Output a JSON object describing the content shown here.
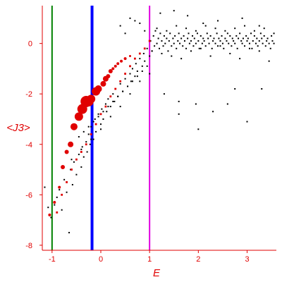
{
  "chart_data": {
    "type": "scatter",
    "title": "",
    "xlabel": "E",
    "ylabel": "<J3>",
    "xlim": [
      -1.2,
      3.6
    ],
    "ylim": [
      -8.2,
      1.5
    ],
    "grid": false,
    "x_ticks": [
      -1,
      0,
      1,
      2,
      3
    ],
    "y_ticks": [
      0,
      -2,
      -4,
      -6,
      -8
    ],
    "x_tick_labels": [
      "-1",
      "0",
      "1",
      "2",
      "3"
    ],
    "y_tick_labels": [
      "0",
      "-2",
      "-4",
      "-6",
      "-8"
    ],
    "vertical_lines": [
      {
        "x": -1.0,
        "color": "#008000"
      },
      {
        "x": -0.18,
        "color": "#0000ff"
      },
      {
        "x": 1.0,
        "color": "#e000e0"
      }
    ],
    "series": [
      {
        "color": "#000000",
        "marker": "dot",
        "x": [
          -1.15,
          -1.08,
          -1.02,
          -0.95,
          -0.9,
          -0.85,
          -0.8,
          -0.75,
          -0.7,
          -0.65,
          -0.62,
          -0.58,
          -0.55,
          -0.5,
          -0.45,
          -0.4,
          -0.38,
          -0.35,
          -0.3,
          -0.28,
          -0.25,
          -0.22,
          -0.2,
          -0.15,
          -0.12,
          -0.1,
          -0.05,
          0.0,
          0.02,
          0.05,
          0.1,
          0.12,
          0.15,
          0.2,
          0.25,
          0.28,
          0.3,
          0.35,
          0.4,
          0.45,
          0.5,
          0.55,
          0.6,
          0.62,
          0.65,
          0.7,
          0.72,
          0.75,
          0.8,
          0.85,
          0.88,
          0.9,
          0.95,
          1.0,
          1.02,
          1.05,
          1.08,
          1.1,
          1.12,
          1.15,
          1.18,
          1.2,
          1.22,
          1.25,
          1.28,
          1.3,
          1.32,
          1.35,
          1.38,
          1.4,
          1.42,
          1.45,
          1.48,
          1.5,
          1.52,
          1.55,
          1.58,
          1.6,
          1.62,
          1.65,
          1.68,
          1.7,
          1.72,
          1.75,
          1.78,
          1.8,
          1.82,
          1.85,
          1.88,
          1.9,
          1.92,
          1.95,
          1.98,
          2.0,
          2.02,
          2.05,
          2.08,
          2.1,
          2.12,
          2.15,
          2.18,
          2.2,
          2.22,
          2.25,
          2.28,
          2.3,
          2.32,
          2.35,
          2.38,
          2.4,
          2.42,
          2.45,
          2.48,
          2.5,
          2.52,
          2.55,
          2.58,
          2.6,
          2.62,
          2.65,
          2.68,
          2.7,
          2.72,
          2.75,
          2.78,
          2.8,
          2.82,
          2.85,
          2.88,
          2.9,
          2.92,
          2.95,
          2.98,
          3.0,
          3.02,
          3.05,
          3.08,
          3.1,
          3.12,
          3.15,
          3.18,
          3.2,
          3.22,
          3.25,
          3.28,
          3.3,
          3.32,
          3.35,
          3.38,
          3.4,
          3.42,
          3.45,
          3.48,
          3.5,
          3.52,
          3.55,
          1.05,
          1.25,
          1.45,
          1.65,
          1.85,
          2.05,
          2.25,
          2.45,
          2.65,
          2.85,
          3.05,
          3.25,
          3.45,
          1.15,
          1.35,
          1.55,
          1.75,
          1.95,
          2.15,
          2.35,
          2.55,
          2.75,
          2.95,
          3.15,
          3.35,
          3.55,
          0.95,
          0.85,
          0.75,
          0.65,
          0.55,
          0.45,
          0.35,
          0.25,
          0.15,
          0.05,
          -0.05,
          -0.15,
          -0.25,
          -0.35,
          -0.45,
          0.9,
          0.8,
          0.7,
          0.6,
          0.5,
          0.4,
          1.22,
          1.5,
          1.78,
          2.1,
          2.4,
          2.9,
          3.25,
          1.95,
          1.6,
          2.75,
          -0.6,
          -0.4,
          -0.2,
          0.0,
          0.2,
          0.4,
          0.6,
          0.8,
          1.0,
          1.3,
          1.6,
          2.0,
          2.3,
          2.6,
          3.0,
          3.3
        ],
        "y": [
          -5.7,
          -6.5,
          -6.9,
          -6.4,
          -6.1,
          -5.8,
          -6.6,
          -5.4,
          -5.9,
          -7.5,
          -5.0,
          -5.6,
          -4.7,
          -5.2,
          -4.4,
          -4.9,
          -4.1,
          -4.5,
          -3.9,
          -4.3,
          -3.6,
          -4.0,
          -3.3,
          -3.8,
          -3.0,
          -3.5,
          -2.8,
          -3.2,
          -2.6,
          -3.0,
          -2.4,
          -2.7,
          -2.2,
          -2.5,
          -2.0,
          -2.3,
          -1.8,
          -2.1,
          -1.6,
          -1.9,
          -1.4,
          -1.7,
          -1.2,
          -1.5,
          -1.0,
          -1.3,
          -0.8,
          -1.1,
          -0.6,
          -0.9,
          -0.4,
          -0.7,
          -0.2,
          -0.5,
          0.1,
          -0.3,
          0.3,
          -0.1,
          0.5,
          0.0,
          0.2,
          -0.2,
          0.4,
          0.1,
          -0.1,
          0.3,
          0.0,
          0.2,
          -0.3,
          0.1,
          0.4,
          -0.1,
          0.2,
          0.0,
          0.3,
          -0.2,
          0.1,
          0.4,
          0.0,
          0.2,
          -0.1,
          0.3,
          0.1,
          -0.2,
          0.2,
          0.4,
          0.0,
          0.1,
          0.3,
          -0.1,
          0.2,
          0.0,
          0.4,
          0.1,
          -0.2,
          0.3,
          0.0,
          0.2,
          0.1,
          -0.1,
          0.4,
          0.2,
          0.0,
          0.3,
          -0.2,
          0.1,
          0.2,
          0.0,
          0.4,
          -0.1,
          0.2,
          0.1,
          0.3,
          0.0,
          -0.2,
          0.2,
          0.1,
          0.4,
          0.0,
          0.3,
          -0.1,
          0.2,
          0.1,
          0.0,
          0.3,
          -0.2,
          0.2,
          0.4,
          0.1,
          0.0,
          0.2,
          -0.1,
          0.3,
          0.1,
          0.2,
          0.0,
          0.4,
          -0.2,
          0.1,
          0.3,
          0.0,
          0.2,
          -0.1,
          0.1,
          0.4,
          0.2,
          0.0,
          0.3,
          -0.1,
          0.1,
          0.2,
          0.0,
          -0.2,
          0.3,
          0.1,
          0.0,
          -0.3,
          -0.4,
          -0.5,
          -0.6,
          -0.3,
          -0.2,
          -0.5,
          -0.1,
          -0.4,
          -0.6,
          -0.2,
          -0.3,
          -0.7,
          0.6,
          0.5,
          0.7,
          0.6,
          0.5,
          0.7,
          0.6,
          0.5,
          0.6,
          0.7,
          0.5,
          0.6,
          0.4,
          -0.9,
          -1.1,
          -1.3,
          -1.5,
          -1.7,
          -1.9,
          -2.1,
          -2.3,
          -2.5,
          -2.7,
          -2.9,
          -3.1,
          -3.3,
          -3.5,
          -3.7,
          0.5,
          0.8,
          0.9,
          1.0,
          0.4,
          0.7,
          1.2,
          1.3,
          1.1,
          0.8,
          0.9,
          1.0,
          0.7,
          -2.4,
          -2.8,
          -1.8,
          -4.6,
          -4.2,
          -3.8,
          -3.4,
          -2.9,
          -2.5,
          -2.0,
          -1.5,
          -1.2,
          -2.0,
          -2.3,
          -3.4,
          -2.7,
          -2.4,
          -3.1,
          -1.8
        ],
        "size": 1.0
      },
      {
        "color": "#e00000",
        "marker": "circle",
        "x": [
          -1.05,
          -0.95,
          -0.85,
          -0.78,
          -0.7,
          -0.62,
          -0.55,
          -0.45,
          -0.38,
          -0.3,
          -0.25,
          -0.2,
          -0.1,
          -0.05,
          0.05,
          0.1,
          0.15,
          0.2,
          0.25,
          0.3,
          0.35,
          0.42,
          0.5,
          0.6
        ],
        "y": [
          -6.8,
          -6.3,
          -5.7,
          -4.9,
          -4.3,
          -4.0,
          -3.3,
          -2.9,
          -2.6,
          -2.3,
          -2.3,
          -2.2,
          -1.9,
          -1.8,
          -1.6,
          -1.4,
          -1.3,
          -1.1,
          -1.0,
          -0.9,
          -0.8,
          -0.7,
          -0.6,
          -0.5
        ],
        "size": [
          2,
          2,
          2,
          3,
          3,
          4,
          5,
          6,
          7,
          8,
          7,
          6,
          6,
          5,
          4,
          4,
          3,
          3,
          2,
          2,
          2,
          2,
          2,
          1.5
        ]
      },
      {
        "color": "#e00000",
        "marker": "dot",
        "x": [
          -0.9,
          -0.8,
          -0.7,
          -0.6,
          -0.5,
          -0.4,
          -0.3,
          -0.2,
          -0.1,
          0.0,
          0.1,
          0.2,
          0.3,
          0.4,
          0.5,
          0.6,
          0.7,
          0.8,
          0.9,
          1.0
        ],
        "y": [
          -6.7,
          -6.0,
          -5.5,
          -5.0,
          -4.6,
          -4.3,
          -4.0,
          -3.6,
          -3.2,
          -2.8,
          -2.5,
          -2.1,
          -1.8,
          -1.5,
          -1.2,
          -0.9,
          -0.6,
          -0.4,
          -0.2,
          0.1
        ],
        "size": 1.4
      }
    ]
  }
}
